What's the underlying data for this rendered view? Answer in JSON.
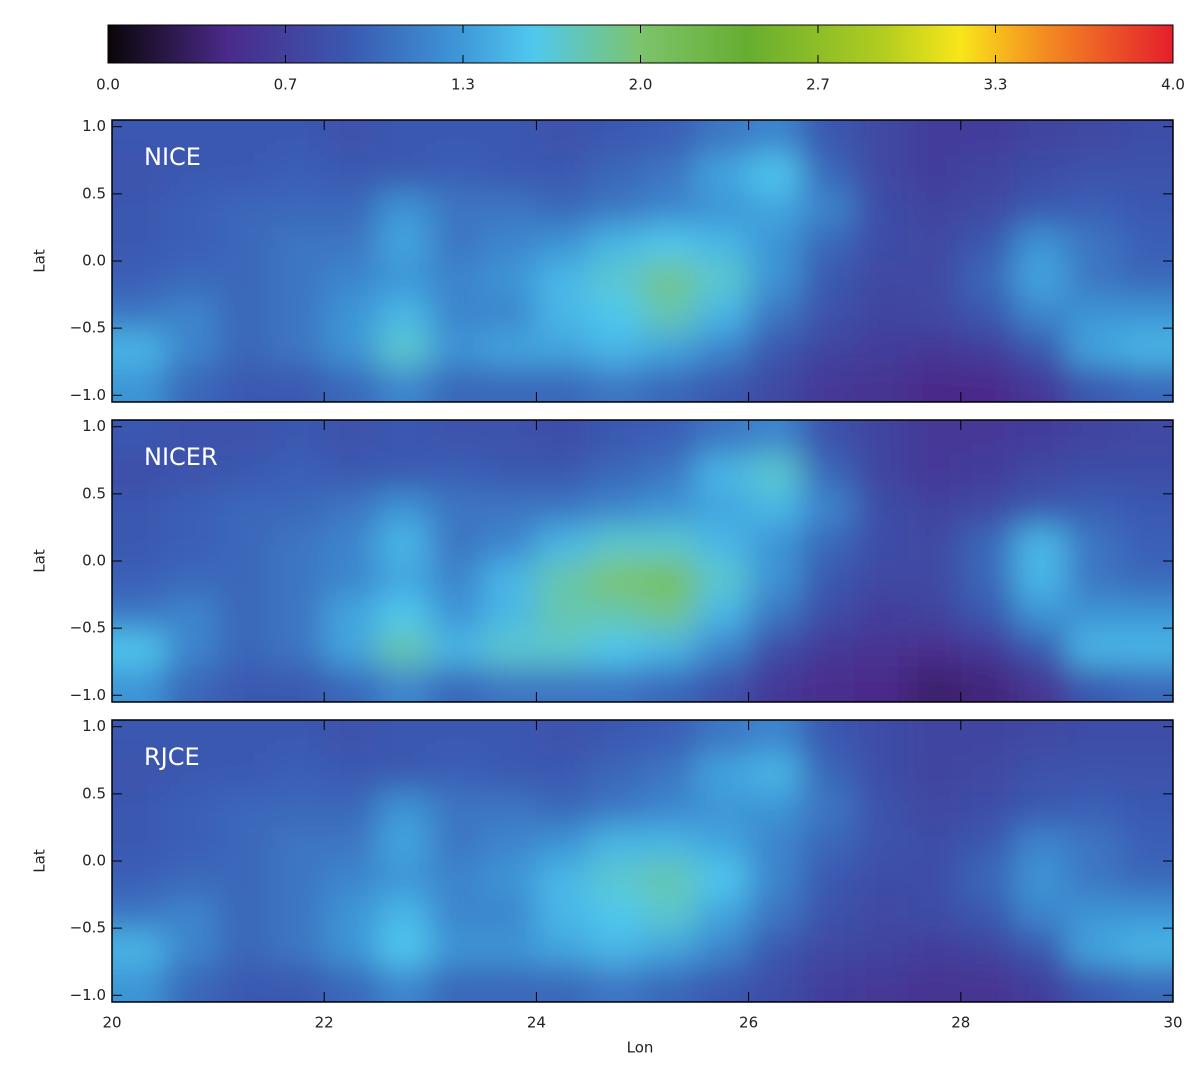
{
  "chart_data": {
    "type": "heatmap",
    "xlabel": "Lon",
    "ylabel": "Lat",
    "xlim": [
      20,
      30
    ],
    "xticks": [
      20,
      22,
      24,
      26,
      28,
      30
    ],
    "ylim": [
      -1.05,
      1.05
    ],
    "yticks": [
      {
        "value": -1.0,
        "label": "−1.0"
      },
      {
        "value": -0.5,
        "label": "−0.5"
      },
      {
        "value": 0.0,
        "label": "0.0"
      },
      {
        "value": 0.5,
        "label": "0.5"
      },
      {
        "value": 1.0,
        "label": "1.0"
      }
    ],
    "colorbar": {
      "zlim": [
        0,
        4
      ],
      "zticks": [
        {
          "value": 0,
          "label": "0.0"
        },
        {
          "value": 0.6667,
          "label": "0.7"
        },
        {
          "value": 1.3333,
          "label": "1.3"
        },
        {
          "value": 2.0,
          "label": "2.0"
        },
        {
          "value": 2.6667,
          "label": "2.7"
        },
        {
          "value": 3.3333,
          "label": "3.3"
        },
        {
          "value": 4.0,
          "label": "4.0"
        }
      ],
      "colormap": [
        [
          0,
          "#0a0508"
        ],
        [
          0.45,
          "#4a2a8a"
        ],
        [
          0.9,
          "#3a58b0"
        ],
        [
          1.3,
          "#3d94d6"
        ],
        [
          1.6,
          "#50c8ee"
        ],
        [
          2.0,
          "#7cc46c"
        ],
        [
          2.4,
          "#66ae30"
        ],
        [
          2.9,
          "#b0cc20"
        ],
        [
          3.2,
          "#f8e61a"
        ],
        [
          3.5,
          "#f49020"
        ],
        [
          4.0,
          "#e41e2c"
        ]
      ]
    },
    "x": [
      20.25,
      20.75,
      21.25,
      21.75,
      22.25,
      22.75,
      23.25,
      23.75,
      24.25,
      24.75,
      25.25,
      25.75,
      26.25,
      26.75,
      27.25,
      27.75,
      28.25,
      28.75,
      29.25,
      29.75
    ],
    "y": [
      0.91875,
      0.65625,
      0.39375,
      0.13125,
      -0.13125,
      -0.39375,
      -0.65625,
      -0.91875
    ],
    "panels": [
      {
        "label": "NICE",
        "z": [
          [
            0.9,
            0.9,
            0.9,
            0.9,
            0.85,
            0.9,
            0.9,
            0.9,
            0.85,
            0.9,
            0.95,
            1.1,
            1.2,
            0.9,
            0.75,
            0.65,
            0.65,
            0.7,
            0.75,
            0.8
          ],
          [
            0.85,
            0.9,
            0.9,
            0.95,
            0.9,
            0.9,
            0.95,
            0.9,
            0.9,
            1.0,
            1.1,
            1.4,
            1.6,
            1.0,
            0.75,
            0.65,
            0.7,
            0.8,
            0.85,
            0.85
          ],
          [
            0.9,
            0.95,
            1.0,
            1.0,
            1.0,
            1.3,
            1.1,
            1.1,
            1.0,
            1.1,
            1.2,
            1.3,
            1.4,
            1.2,
            0.8,
            0.7,
            0.75,
            0.9,
            0.95,
            0.9
          ],
          [
            0.9,
            0.95,
            1.0,
            1.1,
            1.1,
            1.4,
            1.1,
            1.2,
            1.3,
            1.5,
            1.6,
            1.5,
            1.3,
            1.0,
            0.8,
            0.75,
            0.9,
            1.3,
            1.1,
            0.95
          ],
          [
            0.95,
            1.0,
            1.0,
            1.1,
            1.2,
            1.3,
            1.2,
            1.3,
            1.5,
            1.7,
            1.9,
            1.7,
            1.3,
            0.9,
            0.75,
            0.75,
            1.0,
            1.4,
            1.1,
            1.0
          ],
          [
            1.1,
            1.2,
            1.0,
            1.1,
            1.3,
            1.5,
            1.2,
            1.2,
            1.5,
            1.6,
            1.8,
            1.5,
            1.1,
            0.85,
            0.7,
            0.75,
            0.9,
            1.2,
            1.3,
            1.3
          ],
          [
            1.5,
            1.2,
            1.0,
            1.1,
            1.3,
            1.7,
            1.3,
            1.4,
            1.4,
            1.5,
            1.4,
            1.2,
            0.9,
            0.7,
            0.65,
            0.6,
            0.65,
            0.9,
            1.4,
            1.5
          ],
          [
            1.3,
            1.0,
            0.9,
            0.9,
            1.0,
            1.2,
            1.0,
            1.0,
            1.0,
            1.1,
            1.0,
            0.9,
            0.75,
            0.6,
            0.55,
            0.45,
            0.45,
            0.6,
            0.9,
            1.0
          ]
        ]
      },
      {
        "label": "NICER",
        "z": [
          [
            0.9,
            0.85,
            0.85,
            0.9,
            0.85,
            0.9,
            0.85,
            0.85,
            0.8,
            0.9,
            0.95,
            1.1,
            1.2,
            0.85,
            0.7,
            0.6,
            0.6,
            0.65,
            0.7,
            0.75
          ],
          [
            0.8,
            0.85,
            0.9,
            0.95,
            0.9,
            0.9,
            0.95,
            0.9,
            0.9,
            1.0,
            1.1,
            1.5,
            1.7,
            1.0,
            0.7,
            0.6,
            0.65,
            0.75,
            0.8,
            0.8
          ],
          [
            0.9,
            0.95,
            1.0,
            1.0,
            1.1,
            1.3,
            1.1,
            1.1,
            1.1,
            1.2,
            1.3,
            1.4,
            1.5,
            1.2,
            0.8,
            0.7,
            0.75,
            0.9,
            0.95,
            0.9
          ],
          [
            0.9,
            0.95,
            1.0,
            1.1,
            1.2,
            1.5,
            1.1,
            1.2,
            1.5,
            1.7,
            1.7,
            1.5,
            1.3,
            1.0,
            0.8,
            0.75,
            1.0,
            1.5,
            1.1,
            0.95
          ],
          [
            0.95,
            1.0,
            1.0,
            1.1,
            1.2,
            1.4,
            1.2,
            1.5,
            1.8,
            2.0,
            2.1,
            1.7,
            1.3,
            0.9,
            0.75,
            0.75,
            1.0,
            1.5,
            1.1,
            1.0
          ],
          [
            1.1,
            1.2,
            1.0,
            1.1,
            1.4,
            1.6,
            1.3,
            1.5,
            1.8,
            1.8,
            1.9,
            1.5,
            1.1,
            0.8,
            0.65,
            0.7,
            0.9,
            1.3,
            1.3,
            1.3
          ],
          [
            1.6,
            1.2,
            1.0,
            1.1,
            1.4,
            1.8,
            1.5,
            1.7,
            1.7,
            1.6,
            1.5,
            1.2,
            0.8,
            0.6,
            0.55,
            0.5,
            0.6,
            0.9,
            1.5,
            1.5
          ],
          [
            1.3,
            1.0,
            0.9,
            0.9,
            1.0,
            1.2,
            1.0,
            1.1,
            1.1,
            1.1,
            1.0,
            0.85,
            0.6,
            0.5,
            0.45,
            0.35,
            0.4,
            0.55,
            0.9,
            1.0
          ]
        ]
      },
      {
        "label": "RJCE",
        "z": [
          [
            0.9,
            0.9,
            0.9,
            0.9,
            0.85,
            0.9,
            0.9,
            0.9,
            0.85,
            0.9,
            0.95,
            1.1,
            1.2,
            0.9,
            0.8,
            0.7,
            0.7,
            0.75,
            0.8,
            0.8
          ],
          [
            0.85,
            0.9,
            0.9,
            0.95,
            0.9,
            0.9,
            0.95,
            0.9,
            0.9,
            1.0,
            1.1,
            1.4,
            1.5,
            1.0,
            0.8,
            0.7,
            0.75,
            0.85,
            0.85,
            0.85
          ],
          [
            0.9,
            0.95,
            1.0,
            1.0,
            1.0,
            1.3,
            1.1,
            1.1,
            1.0,
            1.1,
            1.2,
            1.3,
            1.3,
            1.1,
            0.85,
            0.75,
            0.8,
            0.9,
            0.95,
            0.9
          ],
          [
            0.9,
            0.95,
            1.0,
            1.1,
            1.1,
            1.4,
            1.1,
            1.2,
            1.3,
            1.5,
            1.5,
            1.4,
            1.2,
            1.0,
            0.85,
            0.8,
            0.9,
            1.2,
            1.1,
            0.95
          ],
          [
            0.95,
            1.0,
            1.0,
            1.1,
            1.2,
            1.3,
            1.2,
            1.3,
            1.5,
            1.7,
            1.8,
            1.6,
            1.2,
            0.9,
            0.8,
            0.8,
            1.0,
            1.3,
            1.1,
            1.0
          ],
          [
            1.1,
            1.2,
            1.0,
            1.1,
            1.3,
            1.5,
            1.2,
            1.2,
            1.5,
            1.6,
            1.7,
            1.4,
            1.1,
            0.85,
            0.75,
            0.8,
            0.9,
            1.2,
            1.3,
            1.3
          ],
          [
            1.5,
            1.2,
            1.0,
            1.1,
            1.3,
            1.6,
            1.3,
            1.3,
            1.4,
            1.5,
            1.4,
            1.2,
            0.9,
            0.75,
            0.7,
            0.65,
            0.7,
            0.9,
            1.4,
            1.5
          ],
          [
            1.3,
            1.0,
            0.9,
            0.9,
            1.0,
            1.2,
            1.0,
            1.0,
            1.0,
            1.1,
            1.0,
            0.9,
            0.8,
            0.65,
            0.6,
            0.55,
            0.55,
            0.65,
            0.9,
            1.0
          ]
        ]
      }
    ]
  }
}
